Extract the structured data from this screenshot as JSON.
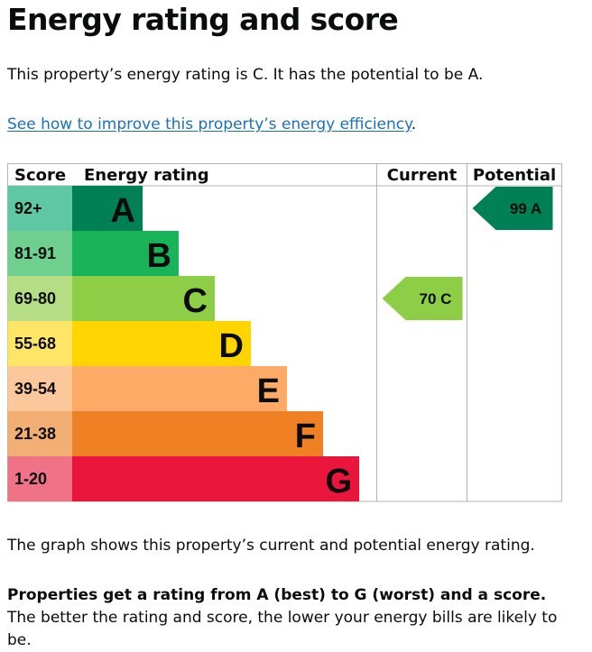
{
  "page": {
    "title": "Energy rating and score",
    "summary": "This property’s energy rating is C. It has the potential to be A.",
    "improve_link": "See how to improve this property’s energy efficiency",
    "improve_suffix": ".",
    "graph_caption": "The graph shows this property’s current and potential energy rating.",
    "explain_bold": "Properties get a rating from A (best) to G (worst) and a score.",
    "explain_rest": " The better the rating and score, the lower your energy bills are likely to be."
  },
  "chart_data": {
    "type": "bar",
    "headers": {
      "score": "Score",
      "rating": "Energy rating",
      "current": "Current",
      "potential": "Potential"
    },
    "bands": [
      {
        "letter": "A",
        "range": "92+",
        "color": "#008054",
        "range_color": "#5fc7a3"
      },
      {
        "letter": "B",
        "range": "81-91",
        "color": "#19b459",
        "range_color": "#6ecf8f"
      },
      {
        "letter": "C",
        "range": "69-80",
        "color": "#8dce46",
        "range_color": "#b5dd85"
      },
      {
        "letter": "D",
        "range": "55-68",
        "color": "#ffd500",
        "range_color": "#ffe566"
      },
      {
        "letter": "E",
        "range": "39-54",
        "color": "#fcaa65",
        "range_color": "#fcc79a"
      },
      {
        "letter": "F",
        "range": "21-38",
        "color": "#ef8023",
        "range_color": "#f3ae73"
      },
      {
        "letter": "G",
        "range": "1-20",
        "color": "#e9153b",
        "range_color": "#f07287"
      }
    ],
    "current": {
      "score": 70,
      "band": "C",
      "label": "70  C"
    },
    "potential": {
      "score": 99,
      "band": "A",
      "label": "99  A"
    }
  }
}
